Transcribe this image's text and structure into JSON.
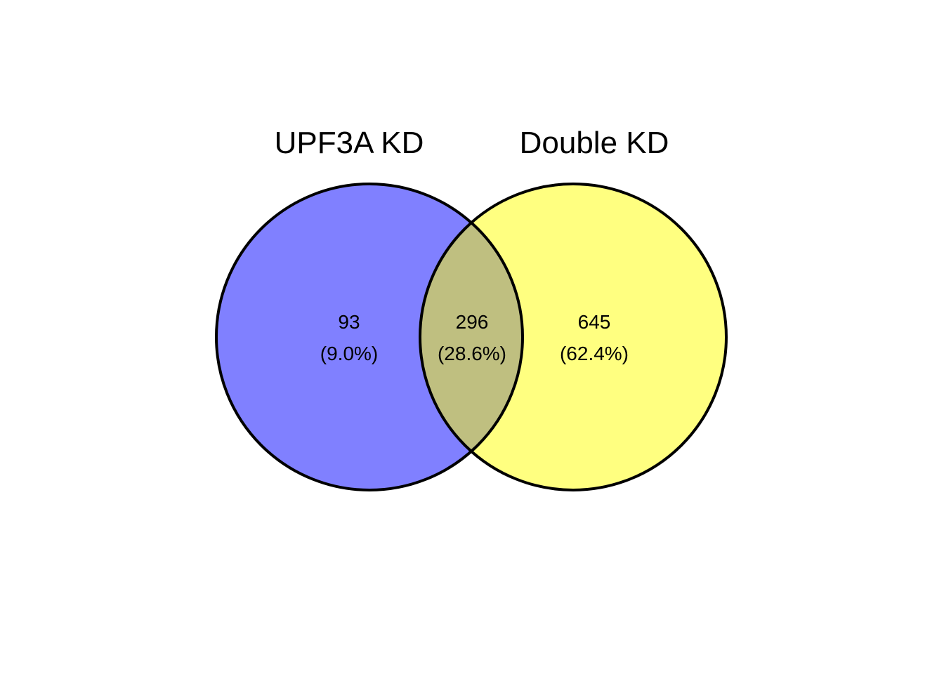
{
  "venn": {
    "sets": [
      {
        "label": "UPF3A KD",
        "color": "#8080ff"
      },
      {
        "label": "Double KD",
        "color": "#ffff80"
      }
    ],
    "overlap_color": "#bfbf80",
    "outline_color": "#000000",
    "regions": {
      "left_only": {
        "count": "93",
        "percent": "(9.0%)"
      },
      "both": {
        "count": "296",
        "percent": "(28.6%)"
      },
      "right_only": {
        "count": "645",
        "percent": "(62.4%)"
      }
    }
  }
}
